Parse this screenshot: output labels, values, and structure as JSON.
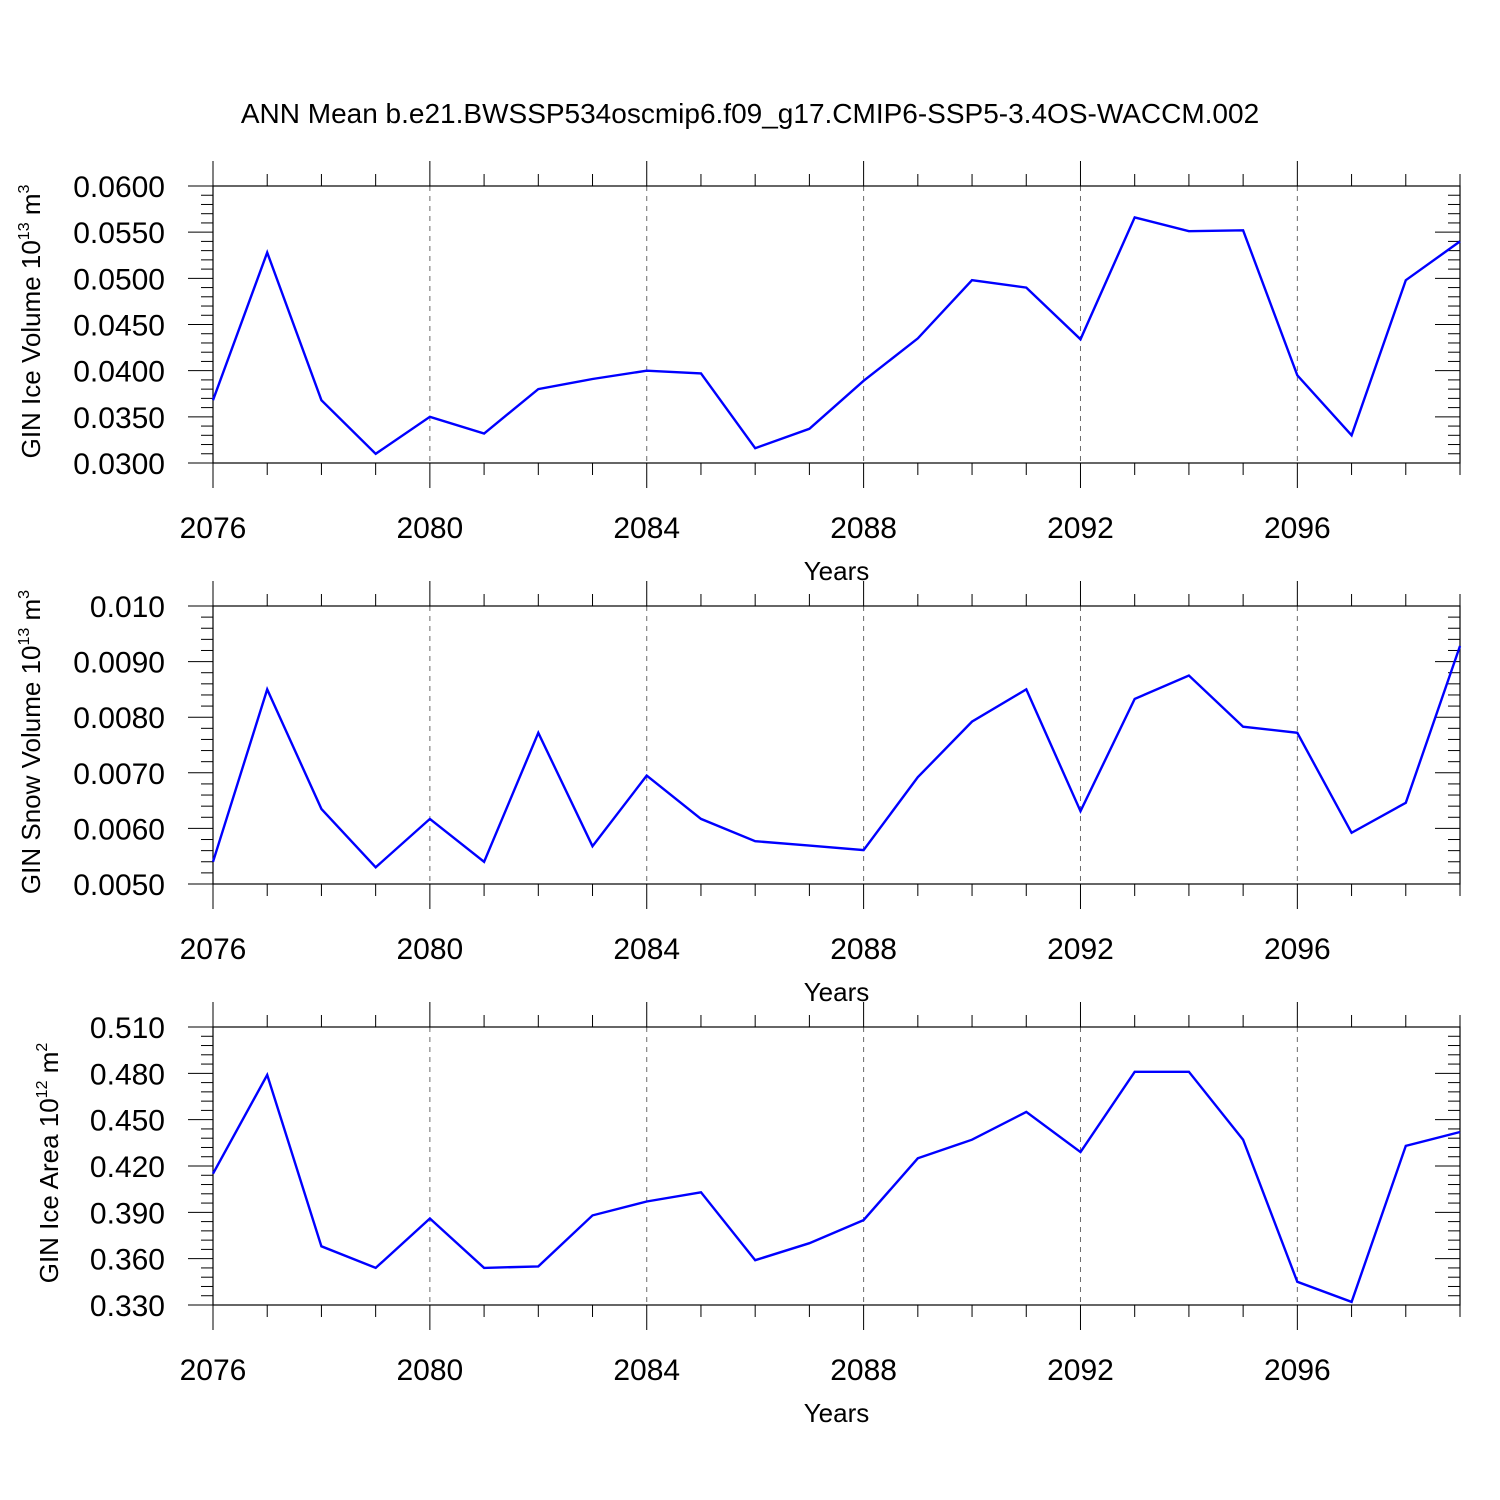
{
  "title": "ANN Mean b.e21.BWSSP534oscmip6.f09_g17.CMIP6-SSP5-3.4OS-WACCM.002",
  "colors": {
    "line": "#0000ff",
    "axis": "#000000",
    "grid": "#6b6b6b"
  },
  "chart_data": [
    {
      "type": "line",
      "xlabel": "Years",
      "ylabel": {
        "prefix": "GIN Ice Volume 10",
        "exp": "13",
        "unit": " m",
        "unit_exp": "3"
      },
      "xlim": [
        2076,
        2099
      ],
      "ylim": [
        0.03,
        0.06
      ],
      "xticks": [
        2076,
        2080,
        2084,
        2088,
        2092,
        2096
      ],
      "xtick_labels": [
        "2076",
        "2080",
        "2084",
        "2088",
        "2092",
        "2096"
      ],
      "yticks": [
        0.03,
        0.035,
        0.04,
        0.045,
        0.05,
        0.055,
        0.06
      ],
      "ytick_labels": [
        "0.0300",
        "0.0350",
        "0.0400",
        "0.0450",
        "0.0500",
        "0.0550",
        "0.0600"
      ],
      "grid": "vertical dashed at major x ticks",
      "x": [
        2076,
        2077,
        2078,
        2079,
        2080,
        2081,
        2082,
        2083,
        2084,
        2085,
        2086,
        2087,
        2088,
        2089,
        2090,
        2091,
        2092,
        2093,
        2094,
        2095,
        2096,
        2097,
        2098,
        2099
      ],
      "values": [
        0.0368,
        0.0528,
        0.0368,
        0.031,
        0.035,
        0.0332,
        0.038,
        0.0391,
        0.04,
        0.0397,
        0.0316,
        0.0337,
        0.0389,
        0.0435,
        0.0498,
        0.049,
        0.0434,
        0.0566,
        0.0551,
        0.0552,
        0.0395,
        0.033,
        0.0498,
        0.054
      ]
    },
    {
      "type": "line",
      "xlabel": "Years",
      "ylabel": {
        "prefix": "GIN Snow Volume 10",
        "exp": "13",
        "unit": " m",
        "unit_exp": "3"
      },
      "xlim": [
        2076,
        2099
      ],
      "ylim": [
        0.005,
        0.01
      ],
      "xticks": [
        2076,
        2080,
        2084,
        2088,
        2092,
        2096
      ],
      "xtick_labels": [
        "2076",
        "2080",
        "2084",
        "2088",
        "2092",
        "2096"
      ],
      "yticks": [
        0.005,
        0.006,
        0.007,
        0.008,
        0.009,
        0.01
      ],
      "ytick_labels": [
        "0.0050",
        "0.0060",
        "0.0070",
        "0.0080",
        "0.0090",
        "0.010"
      ],
      "grid": "vertical dashed at major x ticks",
      "x": [
        2076,
        2077,
        2078,
        2079,
        2080,
        2081,
        2082,
        2083,
        2084,
        2085,
        2086,
        2087,
        2088,
        2089,
        2090,
        2091,
        2092,
        2093,
        2094,
        2095,
        2096,
        2097,
        2098,
        2099
      ],
      "values": [
        0.0054,
        0.0085,
        0.00635,
        0.0053,
        0.00617,
        0.0054,
        0.00772,
        0.00568,
        0.00695,
        0.00617,
        0.00577,
        0.00569,
        0.00561,
        0.00692,
        0.00792,
        0.0085,
        0.00631,
        0.00833,
        0.00875,
        0.00783,
        0.00772,
        0.00592,
        0.00646,
        0.00928
      ]
    },
    {
      "type": "line",
      "xlabel": "Years",
      "ylabel": {
        "prefix": "GIN Ice Area 10",
        "exp": "12",
        "unit": " m",
        "unit_exp": "2"
      },
      "xlim": [
        2076,
        2099
      ],
      "ylim": [
        0.33,
        0.51
      ],
      "xticks": [
        2076,
        2080,
        2084,
        2088,
        2092,
        2096
      ],
      "xtick_labels": [
        "2076",
        "2080",
        "2084",
        "2088",
        "2092",
        "2096"
      ],
      "yticks": [
        0.33,
        0.36,
        0.39,
        0.42,
        0.45,
        0.48,
        0.51
      ],
      "ytick_labels": [
        "0.330",
        "0.360",
        "0.390",
        "0.420",
        "0.450",
        "0.480",
        "0.510"
      ],
      "grid": "vertical dashed at major x ticks",
      "x": [
        2076,
        2077,
        2078,
        2079,
        2080,
        2081,
        2082,
        2083,
        2084,
        2085,
        2086,
        2087,
        2088,
        2089,
        2090,
        2091,
        2092,
        2093,
        2094,
        2095,
        2096,
        2097,
        2098,
        2099
      ],
      "values": [
        0.415,
        0.479,
        0.368,
        0.354,
        0.386,
        0.354,
        0.355,
        0.388,
        0.397,
        0.403,
        0.359,
        0.37,
        0.385,
        0.425,
        0.437,
        0.455,
        0.429,
        0.481,
        0.481,
        0.437,
        0.345,
        0.332,
        0.433,
        0.442
      ]
    }
  ]
}
